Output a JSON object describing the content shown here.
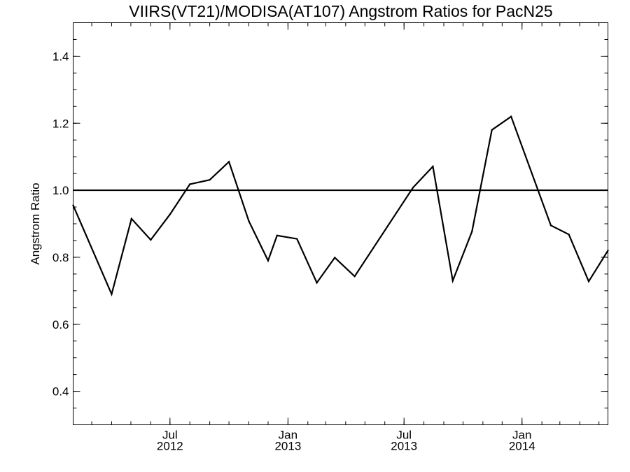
{
  "chart_data": {
    "type": "line",
    "title": "VIIRS(VT21)/MODISA(AT107)  Angstrom Ratios for PacN25",
    "xlabel": "",
    "ylabel": "Angstrom Ratio",
    "xlim": [
      "2012-02-01",
      "2014-05-15"
    ],
    "ylim": [
      0.3,
      1.5
    ],
    "yticks": [
      {
        "value": 0.4,
        "label": "0.4"
      },
      {
        "value": 0.6,
        "label": "0.6"
      },
      {
        "value": 0.8,
        "label": "0.8"
      },
      {
        "value": 1.0,
        "label": "1.0"
      },
      {
        "value": 1.2,
        "label": "1.2"
      },
      {
        "value": 1.4,
        "label": "1.4"
      }
    ],
    "xticks": [
      {
        "date": "2012-07-01",
        "label1": "Jul",
        "label2": "2012"
      },
      {
        "date": "2013-01-01",
        "label1": "Jan",
        "label2": "2013"
      },
      {
        "date": "2013-07-01",
        "label1": "Jul",
        "label2": "2013"
      },
      {
        "date": "2014-01-01",
        "label1": "Jan",
        "label2": "2014"
      }
    ],
    "reference_line": {
      "y": 1.0
    },
    "series": [
      {
        "points": [
          {
            "x": "2012-02-01",
            "y": 0.955
          },
          {
            "x": "2012-04-01",
            "y": 0.69
          },
          {
            "x": "2012-05-02",
            "y": 0.915
          },
          {
            "x": "2012-06-01",
            "y": 0.852
          },
          {
            "x": "2012-07-01",
            "y": 0.928
          },
          {
            "x": "2012-08-01",
            "y": 1.018
          },
          {
            "x": "2012-09-01",
            "y": 1.031
          },
          {
            "x": "2012-10-01",
            "y": 1.085
          },
          {
            "x": "2012-11-01",
            "y": 0.908
          },
          {
            "x": "2012-12-01",
            "y": 0.79
          },
          {
            "x": "2012-12-15",
            "y": 0.865
          },
          {
            "x": "2013-01-15",
            "y": 0.855
          },
          {
            "x": "2013-02-15",
            "y": 0.724
          },
          {
            "x": "2013-03-15",
            "y": 0.799
          },
          {
            "x": "2013-04-15",
            "y": 0.743
          },
          {
            "x": "2013-07-15",
            "y": 1.008
          },
          {
            "x": "2013-08-15",
            "y": 1.071
          },
          {
            "x": "2013-09-15",
            "y": 0.73
          },
          {
            "x": "2013-10-15",
            "y": 0.877
          },
          {
            "x": "2013-11-15",
            "y": 1.18
          },
          {
            "x": "2013-12-15",
            "y": 1.22
          },
          {
            "x": "2014-02-15",
            "y": 0.895
          },
          {
            "x": "2014-03-15",
            "y": 0.868
          },
          {
            "x": "2014-04-15",
            "y": 0.728
          },
          {
            "x": "2014-05-15",
            "y": 0.82
          }
        ]
      }
    ]
  }
}
